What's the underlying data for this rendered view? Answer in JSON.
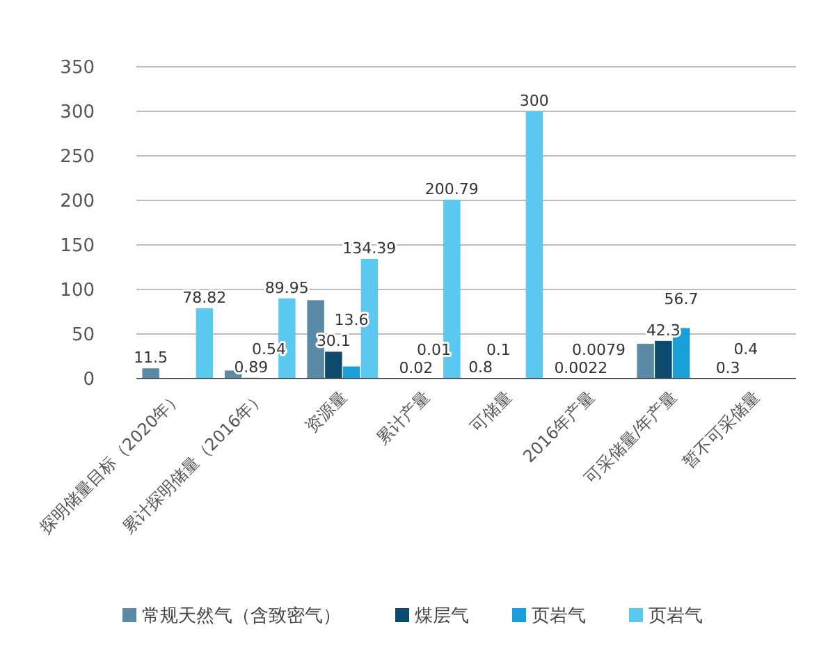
{
  "chart_data": {
    "type": "bar",
    "categories": [
      "探明储量目标（2020年）",
      "累计探明储量（2016年）",
      "资源量",
      "累计产量",
      "可储量",
      "2016年产量",
      "可采储量/年产量",
      "暂不可采储量"
    ],
    "series": [
      {
        "name": "常规天然气（含致密气）",
        "color": "#5b8aa6",
        "values": [
          11.5,
          9,
          88,
          null,
          0.8,
          null,
          39,
          0.3
        ],
        "value_labels": [
          "11.5",
          null,
          null,
          null,
          "0.8",
          null,
          null,
          "0.3"
        ]
      },
      {
        "name": "煤层气",
        "color": "#0e4a6e",
        "values": [
          null,
          0.89,
          30.1,
          0.02,
          0.1,
          0.0022,
          42.3,
          0.4
        ],
        "value_labels": [
          null,
          "0.89",
          "30.1",
          "0.02",
          "0.1",
          "0.0022",
          "42.3",
          "0.4"
        ]
      },
      {
        "name": "页岩气",
        "color": "#1aa0d8",
        "values": [
          null,
          0.54,
          13.6,
          0.01,
          null,
          0.0079,
          56.7,
          null
        ],
        "value_labels": [
          null,
          "0.54",
          "13.6",
          "0.01",
          null,
          "0.0079",
          "56.7",
          null
        ]
      },
      {
        "name": "页岩气",
        "color": "#5bc8f0",
        "values": [
          78.82,
          89.95,
          134.39,
          200.79,
          300,
          null,
          null,
          null
        ],
        "value_labels": [
          "78.82",
          "89.95",
          "134.39",
          "200.79",
          "300",
          null,
          null,
          null
        ]
      }
    ],
    "ylim": [
      0,
      350
    ],
    "yticks": [
      0,
      50,
      100,
      150,
      200,
      250,
      300,
      350
    ],
    "grid": "y",
    "legend": "bottom"
  }
}
